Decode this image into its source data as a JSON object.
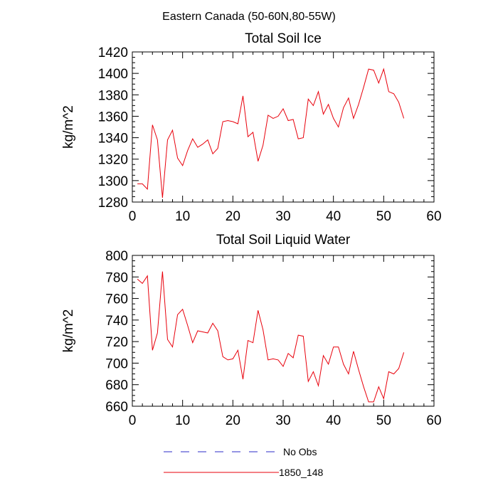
{
  "title": "Eastern Canada (50-60N,80-55W)",
  "colors": {
    "series_1850_148": "#e8000b",
    "no_obs": "#2b2bc8"
  },
  "legend": [
    {
      "label": "No Obs",
      "style": "dashed",
      "color": "#2b2bc8"
    },
    {
      "label": "1850_148",
      "style": "solid",
      "color": "#e8000b"
    }
  ],
  "chart_data": [
    {
      "type": "line",
      "title": "Total Soil Ice",
      "xlabel": "",
      "ylabel": "kg/m^2",
      "xlim": [
        0,
        60
      ],
      "ylim": [
        1280,
        1420
      ],
      "xticks": [
        0,
        10,
        20,
        30,
        40,
        50,
        60
      ],
      "yticks": [
        1280,
        1300,
        1320,
        1340,
        1360,
        1380,
        1400,
        1420
      ],
      "series": [
        {
          "name": "1850_148",
          "x": [
            1,
            2,
            3,
            4,
            5,
            6,
            7,
            8,
            9,
            10,
            11,
            12,
            13,
            14,
            15,
            16,
            17,
            18,
            19,
            20,
            21,
            22,
            23,
            24,
            25,
            26,
            27,
            28,
            29,
            30,
            31,
            32,
            33,
            34,
            35,
            36,
            37,
            38,
            39,
            40,
            41,
            42,
            43,
            44,
            45,
            46,
            47,
            48,
            49,
            50,
            51,
            52,
            53,
            54
          ],
          "values": [
            1297,
            1297,
            1292,
            1352,
            1338,
            1284,
            1338,
            1347,
            1321,
            1314,
            1328,
            1339,
            1331,
            1334,
            1338,
            1325,
            1330,
            1355,
            1356,
            1355,
            1353,
            1379,
            1341,
            1345,
            1318,
            1333,
            1361,
            1358,
            1360,
            1367,
            1356,
            1357,
            1339,
            1340,
            1376,
            1370,
            1383,
            1362,
            1371,
            1358,
            1350,
            1368,
            1377,
            1358,
            1371,
            1387,
            1404,
            1403,
            1391,
            1404,
            1383,
            1381,
            1373,
            1358
          ]
        }
      ]
    },
    {
      "type": "line",
      "title": "Total Soil Liquid Water",
      "xlabel": "",
      "ylabel": "kg/m^2",
      "xlim": [
        0,
        60
      ],
      "ylim": [
        660,
        800
      ],
      "xticks": [
        0,
        10,
        20,
        30,
        40,
        50,
        60
      ],
      "yticks": [
        660,
        680,
        700,
        720,
        740,
        760,
        780,
        800
      ],
      "series": [
        {
          "name": "1850_148",
          "x": [
            1,
            2,
            3,
            4,
            5,
            6,
            7,
            8,
            9,
            10,
            11,
            12,
            13,
            14,
            15,
            16,
            17,
            18,
            19,
            20,
            21,
            22,
            23,
            24,
            25,
            26,
            27,
            28,
            29,
            30,
            31,
            32,
            33,
            34,
            35,
            36,
            37,
            38,
            39,
            40,
            41,
            42,
            43,
            44,
            45,
            46,
            47,
            48,
            49,
            50,
            51,
            52,
            53,
            54
          ],
          "values": [
            778,
            774,
            781,
            712,
            728,
            785,
            722,
            715,
            745,
            750,
            735,
            719,
            730,
            729,
            728,
            737,
            730,
            706,
            703,
            704,
            712,
            685,
            721,
            719,
            749,
            731,
            703,
            704,
            703,
            697,
            709,
            705,
            726,
            725,
            683,
            692,
            679,
            707,
            699,
            715,
            715,
            699,
            690,
            711,
            694,
            678,
            664,
            664,
            678,
            667,
            692,
            690,
            695,
            710
          ]
        }
      ]
    }
  ]
}
